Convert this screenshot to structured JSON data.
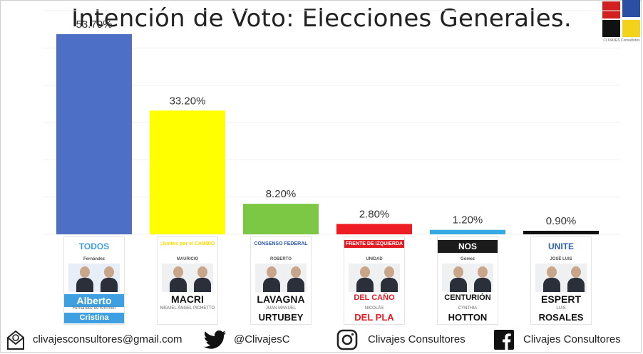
{
  "title": "Intención de Voto: Elecciones Generales.",
  "logo": {
    "caption": "CLIVAJES Consultores",
    "colors": [
      "#d21f1f",
      "#2b4fa3",
      "#111111",
      "#f2d21a"
    ]
  },
  "chart_data": {
    "type": "bar",
    "title": "Intención de Voto: Elecciones Generales.",
    "categories": [
      "Frente de Todos",
      "Juntos por el Cambio",
      "Consenso Federal",
      "Frente de Izquierda Unidad",
      "Frente NOS",
      "Unite"
    ],
    "values": [
      53.7,
      33.2,
      8.2,
      2.8,
      1.2,
      0.9
    ],
    "value_labels": [
      "53.70%",
      "33.20%",
      "8.20%",
      "2.80%",
      "1.20%",
      "0.90%"
    ],
    "colors": [
      "#4d70c6",
      "#ffff00",
      "#7cc744",
      "#ee1d24",
      "#35a9e1",
      "#111111"
    ],
    "xlabel": "",
    "ylabel": "",
    "ylim": [
      0,
      60
    ],
    "grid": true,
    "legend": "none"
  },
  "ballots": [
    {
      "party": "TODOS",
      "top": "Fernández",
      "name1": "Alberto",
      "name2": "Cristina",
      "sub": "Fernández de Kirchner",
      "theme": "#3ea0e0"
    },
    {
      "party": "¡Juntos por el CAMBIO",
      "top": "MAURICIO",
      "name1": "MACRI",
      "name2": "",
      "sub": "MIGUEL ÁNGEL PICHETTO",
      "theme": "#ffd800"
    },
    {
      "party": "CONSENSO FEDERAL",
      "top": "ROBERTO",
      "name1": "LAVAGNA",
      "name2": "URTUBEY",
      "sub": "JUAN MANUEL",
      "theme": "#2e57b0"
    },
    {
      "party": "FRENTE DE IZQUIERDA",
      "top": "UNIDAD",
      "name1": "DEL CAÑO",
      "name2": "DEL PLA",
      "sub": "NICOLÁS",
      "theme": "#e31b23"
    },
    {
      "party": "NOS",
      "top": "Gómez",
      "name1": "CENTURIÓN",
      "name2": "HOTTON",
      "sub": "CYNTHIA",
      "theme": "#1b1b1b"
    },
    {
      "party": "UNITE",
      "top": "JOSÉ LUIS",
      "name1": "ESPERT",
      "name2": "ROSALES",
      "sub": "LUIS",
      "theme": "#2d62b5"
    }
  ],
  "footer": {
    "email": "clivajesconsultores@gmail.com",
    "twitter": "@ClivajesC",
    "instagram": "Clivajes Consultores",
    "facebook": "Clivajes Consultores",
    "icons": [
      "mail-icon",
      "twitter-icon",
      "instagram-icon",
      "facebook-icon"
    ]
  }
}
